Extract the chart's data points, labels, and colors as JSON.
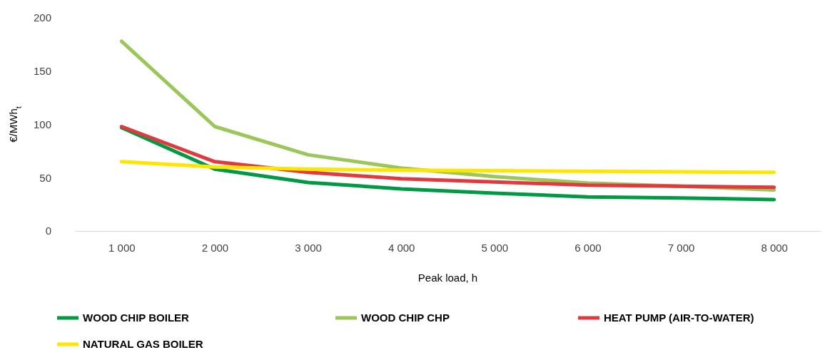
{
  "chart_data": {
    "type": "line",
    "xlabel": "Peak load, h",
    "ylabel": "€/MWh$_{t}$",
    "categories": [
      "1 000",
      "2 000",
      "3 000",
      "4 000",
      "5 000",
      "6 000",
      "7 000",
      "8 000"
    ],
    "ylim": [
      0,
      200
    ],
    "yticks": [
      0,
      50,
      100,
      150,
      200
    ],
    "grid": false,
    "legend": "bottom",
    "marker": "none",
    "line_style": "solid",
    "series": [
      {
        "name": "WOOD CHIP BOILER",
        "color": "#009a44",
        "values": [
          97,
          58,
          45.5,
          39.5,
          35.5,
          32,
          31,
          29.5
        ]
      },
      {
        "name": "WOOD CHIP CHP",
        "color": "#9bc65a",
        "values": [
          178,
          98,
          71.5,
          59,
          51,
          45,
          42,
          38.5
        ]
      },
      {
        "name": "HEAT PUMP (AIR-TO-WATER)",
        "color": "#e0393e",
        "values": [
          98,
          65,
          55,
          49,
          46,
          43,
          42,
          41
        ]
      },
      {
        "name": "NATURAL GAS BOILER",
        "color": "#ffe600",
        "values": [
          65,
          60,
          58,
          57,
          56.5,
          56,
          55.5,
          55
        ]
      }
    ]
  }
}
